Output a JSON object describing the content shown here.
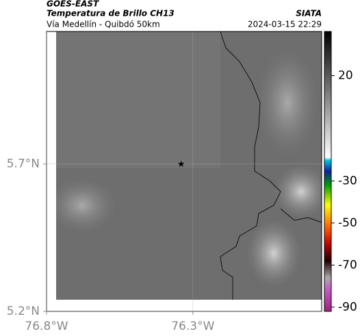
{
  "header": {
    "satellite": "GOES-EAST",
    "product": "Temperatura de Brillo CH13",
    "source": "SIATA",
    "location": "Vía Medellín - Quibdó 50km",
    "timestamp": "2024-03-15 22:29"
  },
  "map": {
    "xlim": [
      -76.8,
      -75.86
    ],
    "ylim": [
      5.2,
      6.15
    ],
    "xticks": [
      {
        "value": -76.8,
        "label": "76.8°W"
      },
      {
        "value": -76.3,
        "label": "76.3°W"
      }
    ],
    "yticks": [
      {
        "value": 5.2,
        "label": "5.2°N"
      },
      {
        "value": 5.7,
        "label": "5.7°N"
      }
    ],
    "grid": true,
    "marker": {
      "lon": -76.34,
      "lat": 5.7
    }
  },
  "colorbar": {
    "lim": [
      -92,
      41
    ],
    "ticks": [
      20,
      -30,
      -50,
      -70,
      -90
    ]
  }
}
